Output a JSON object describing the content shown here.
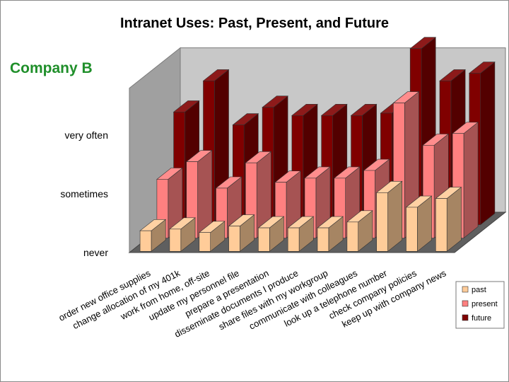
{
  "title": "Intranet Uses:  Past, Present, and Future",
  "subtitle": "Company B",
  "chart_data": {
    "type": "bar",
    "style": "3d-clustered",
    "title": "Intranet Uses:  Past, Present, and Future",
    "subtitle": "Company B",
    "y_tick_labels": [
      "never",
      "sometimes",
      "very often"
    ],
    "y_tick_values": [
      0,
      1,
      2
    ],
    "ylim": [
      0,
      2.8
    ],
    "grid": false,
    "legend_position": "right",
    "categories": [
      "order new office supplies",
      "change allocation of my 401k",
      "work from home, off-site",
      "update my personnel file",
      "prepare a presentation",
      "disseminate documents I produce",
      "share files with my workgroup",
      "communicate with colleagues",
      "look up a telephone number",
      "check company policies",
      "keep up with company news"
    ],
    "series": [
      {
        "name": "past",
        "color": "#ffcc99",
        "values": [
          0.35,
          0.38,
          0.32,
          0.43,
          0.4,
          0.4,
          0.4,
          0.5,
          1.0,
          0.75,
          0.9
        ]
      },
      {
        "name": "present",
        "color": "#ff8080",
        "values": [
          1.0,
          1.3,
          0.85,
          1.28,
          0.95,
          1.02,
          1.02,
          1.15,
          2.3,
          1.58,
          1.78
        ]
      },
      {
        "name": "future",
        "color": "#800000",
        "values": [
          1.92,
          2.45,
          1.7,
          2.0,
          1.86,
          1.86,
          1.86,
          1.9,
          3.0,
          2.45,
          2.58
        ]
      }
    ]
  }
}
